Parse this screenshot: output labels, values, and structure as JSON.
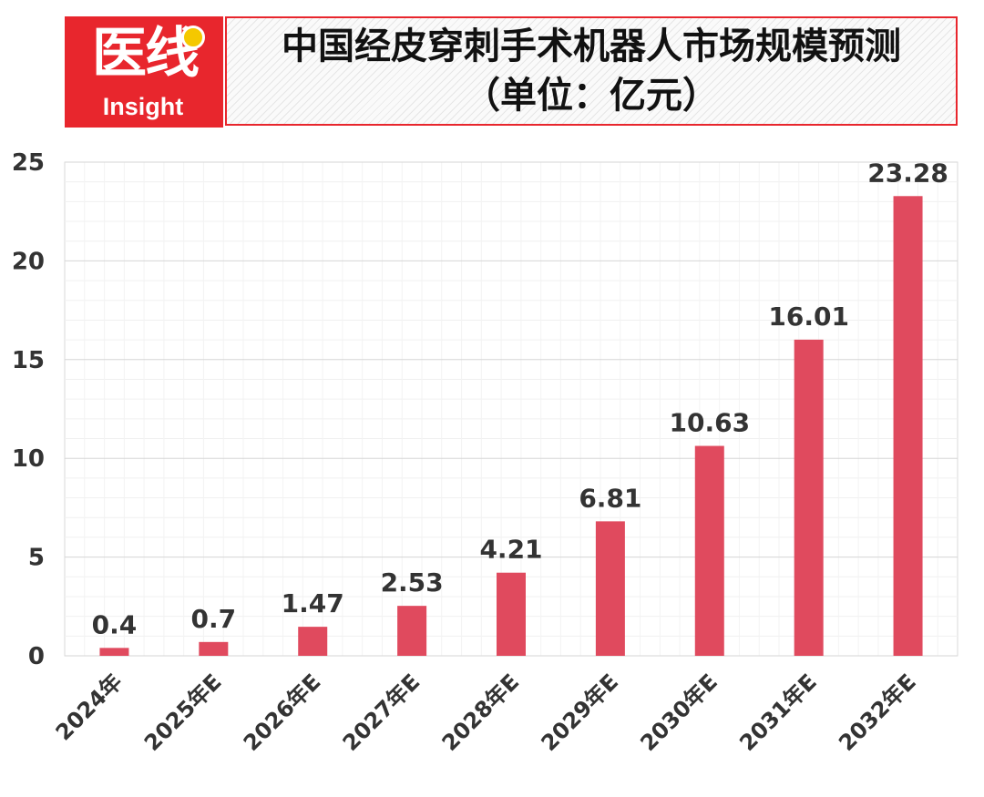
{
  "logo": {
    "cn": "医线",
    "en": "Insight"
  },
  "title": {
    "line1": "中国经皮穿刺手术机器人市场规模预测",
    "line2": "（单位：亿元）"
  },
  "colors": {
    "bar": "#e04a5e",
    "brand": "#e8262d"
  },
  "chart_data": {
    "type": "bar",
    "title": "中国经皮穿刺手术机器人市场规模预测（单位：亿元）",
    "categories": [
      "2024年",
      "2025年E",
      "2026年E",
      "2027年E",
      "2028年E",
      "2029年E",
      "2030年E",
      "2031年E",
      "2032年E"
    ],
    "values": [
      0.4,
      0.7,
      1.47,
      2.53,
      4.21,
      6.81,
      10.63,
      16.01,
      23.28
    ],
    "value_labels": [
      "0.4",
      "0.7",
      "1.47",
      "2.53",
      "4.21",
      "6.81",
      "10.63",
      "16.01",
      "23.28"
    ],
    "ylim": [
      0,
      25
    ],
    "yticks": [
      0,
      5,
      10,
      15,
      20,
      25
    ],
    "grid": true,
    "legend": "none"
  }
}
